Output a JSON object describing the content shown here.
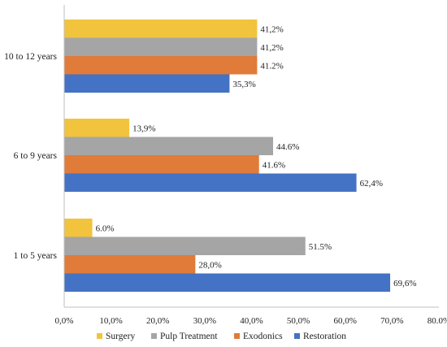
{
  "chart_data": {
    "type": "bar",
    "orientation": "horizontal",
    "categories": [
      "10 to 12 years",
      "6 to 9 years",
      "1 to 5 years"
    ],
    "series": [
      {
        "name": "Surgery",
        "color": "#f2c33d",
        "values": [
          41.2,
          13.9,
          6.0
        ],
        "labels": [
          "41,2%",
          "13,9%",
          "6.0%"
        ]
      },
      {
        "name": "Pulp Treatment",
        "color": "#a5a5a5",
        "values": [
          41.2,
          44.6,
          51.5
        ],
        "labels": [
          "41,2%",
          "44.6%",
          "51.5%"
        ]
      },
      {
        "name": "Exodonics",
        "color": "#e07b39",
        "values": [
          41.2,
          41.6,
          28.0
        ],
        "labels": [
          "41.2%",
          "41.6%",
          "28,0%"
        ]
      },
      {
        "name": "Restoration",
        "color": "#4472c4",
        "values": [
          35.3,
          62.4,
          69.6
        ],
        "labels": [
          "35,3%",
          "62,4%",
          "69,6%"
        ]
      }
    ],
    "xlim": [
      0,
      80
    ],
    "x_ticks": [
      "0,0%",
      "10,0%",
      "20,0%",
      "30,0%",
      "40,0%",
      "50,0%",
      "60,0%",
      "70,0%",
      "80.0%"
    ],
    "title": "",
    "xlabel": "",
    "ylabel": "",
    "legend_position": "bottom",
    "grid": false
  }
}
